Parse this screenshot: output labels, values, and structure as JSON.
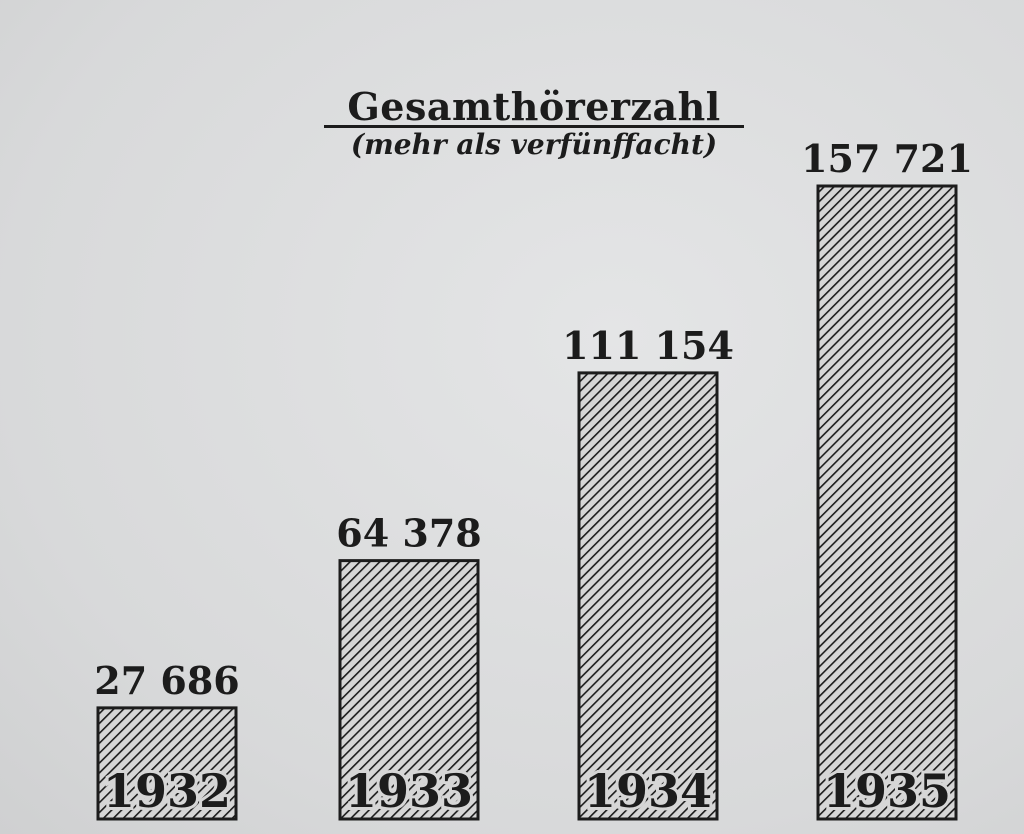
{
  "chart_data": {
    "type": "bar",
    "title": "Gesamthörerzahl",
    "subtitle": "(mehr als verfünffacht)",
    "categories": [
      "1932",
      "1933",
      "1934",
      "1935"
    ],
    "values": [
      27686,
      64378,
      111154,
      157721
    ],
    "value_labels": [
      "27 686",
      "64 378",
      "111 154",
      "157 721"
    ],
    "xlabel": "",
    "ylabel": "",
    "grid": false,
    "bar_fill": "diagonal-hatch",
    "colors": {
      "ink": "#1c1c1c",
      "paper": "#dcdcdc"
    }
  }
}
